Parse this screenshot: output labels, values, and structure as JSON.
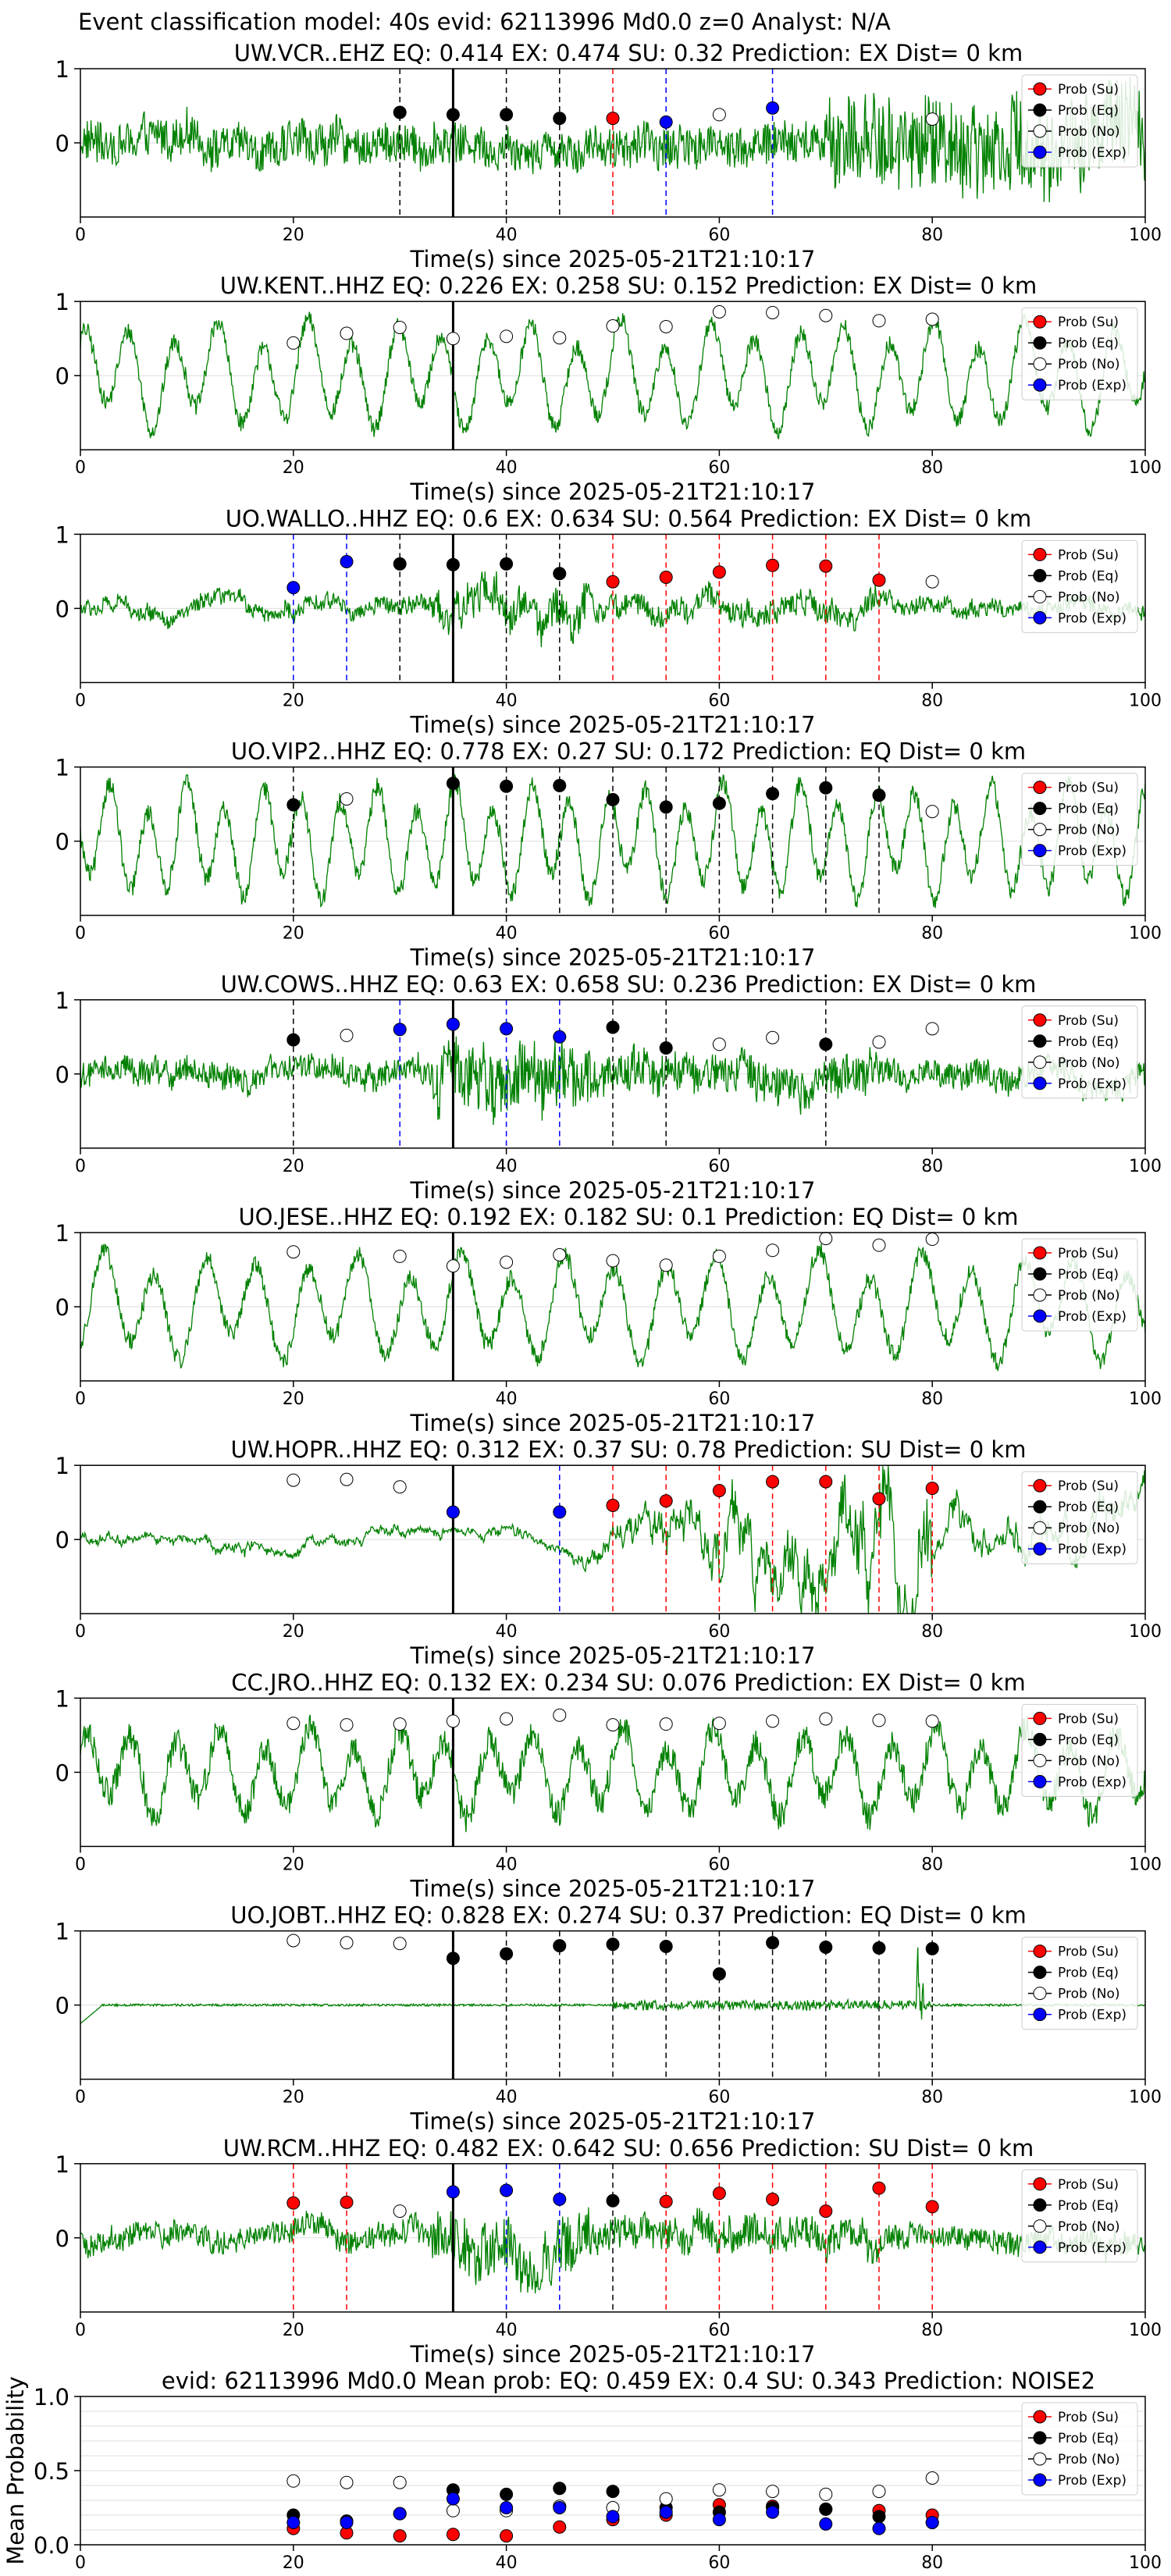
{
  "figure_title": "Event classification model: 40s evid: 62113996 Md0.0 z=0 Analyst: N/A",
  "colors": {
    "waveform": "#008000",
    "su": "#ff0000",
    "eq": "#000000",
    "no": "#ffffff",
    "exp": "#0000ff",
    "grid": "#dddddd",
    "pick": "#000000"
  },
  "legend_labels": [
    "Prob (Su)",
    "Prob (Eq)",
    "Prob (No)",
    "Prob (Exp)"
  ],
  "chart_data": [
    {
      "type": "scatter",
      "title": "UW.VCR..EHZ   EQ: 0.414  EX: 0.474  SU: 0.32   Prediction: EX    Dist= 0 km",
      "xlabel": "Time(s) since 2025-05-21T21:10:17",
      "xlim": [
        0,
        100
      ],
      "ylim": [
        -1,
        1
      ],
      "xticks": [
        0,
        20,
        40,
        60,
        80,
        100
      ],
      "yticks": [
        0,
        1
      ],
      "pick_time": 35,
      "waveform_amplitude": 0.55,
      "waveform_style": "noisy-burst-late",
      "legend_position": "top-right",
      "points": [
        {
          "x": 30,
          "y": 0.41,
          "cls": "eq"
        },
        {
          "x": 35,
          "y": 0.38,
          "cls": "eq"
        },
        {
          "x": 40,
          "y": 0.38,
          "cls": "eq"
        },
        {
          "x": 45,
          "y": 0.33,
          "cls": "eq"
        },
        {
          "x": 50,
          "y": 0.33,
          "cls": "su"
        },
        {
          "x": 55,
          "y": 0.28,
          "cls": "exp"
        },
        {
          "x": 60,
          "y": 0.38,
          "cls": "no"
        },
        {
          "x": 65,
          "y": 0.47,
          "cls": "exp"
        },
        {
          "x": 80,
          "y": 0.32,
          "cls": "no"
        }
      ]
    },
    {
      "type": "scatter",
      "title": "UW.KENT..HHZ   EQ: 0.226  EX: 0.258  SU: 0.152   Prediction: EX    Dist= 0 km",
      "xlabel": "Time(s) since 2025-05-21T21:10:17",
      "xlim": [
        0,
        100
      ],
      "ylim": [
        -1,
        1
      ],
      "xticks": [
        0,
        20,
        40,
        60,
        80,
        100
      ],
      "yticks": [
        0,
        1
      ],
      "pick_time": 35,
      "waveform_amplitude": 0.8,
      "waveform_style": "oscillating",
      "legend_position": "top-right",
      "points": [
        {
          "x": 20,
          "y": 0.44,
          "cls": "no"
        },
        {
          "x": 25,
          "y": 0.57,
          "cls": "no"
        },
        {
          "x": 30,
          "y": 0.65,
          "cls": "no"
        },
        {
          "x": 35,
          "y": 0.5,
          "cls": "no"
        },
        {
          "x": 40,
          "y": 0.53,
          "cls": "no"
        },
        {
          "x": 45,
          "y": 0.51,
          "cls": "no"
        },
        {
          "x": 50,
          "y": 0.67,
          "cls": "no"
        },
        {
          "x": 55,
          "y": 0.66,
          "cls": "no"
        },
        {
          "x": 60,
          "y": 0.86,
          "cls": "no"
        },
        {
          "x": 65,
          "y": 0.85,
          "cls": "no"
        },
        {
          "x": 70,
          "y": 0.81,
          "cls": "no"
        },
        {
          "x": 75,
          "y": 0.74,
          "cls": "no"
        },
        {
          "x": 80,
          "y": 0.76,
          "cls": "no"
        }
      ]
    },
    {
      "type": "scatter",
      "title": "UO.WALLO..HHZ   EQ: 0.6  EX: 0.634  SU: 0.564   Prediction: EX    Dist= 0 km",
      "xlabel": "Time(s) since 2025-05-21T21:10:17",
      "xlim": [
        0,
        100
      ],
      "ylim": [
        -1,
        1
      ],
      "xticks": [
        0,
        20,
        40,
        60,
        80,
        100
      ],
      "yticks": [
        0,
        1
      ],
      "pick_time": 35,
      "waveform_amplitude": 0.2,
      "waveform_style": "noisy-burst-mid",
      "legend_position": "top-right",
      "points": [
        {
          "x": 20,
          "y": 0.28,
          "cls": "exp"
        },
        {
          "x": 25,
          "y": 0.63,
          "cls": "exp"
        },
        {
          "x": 30,
          "y": 0.6,
          "cls": "eq"
        },
        {
          "x": 35,
          "y": 0.59,
          "cls": "eq"
        },
        {
          "x": 40,
          "y": 0.6,
          "cls": "eq"
        },
        {
          "x": 45,
          "y": 0.47,
          "cls": "eq"
        },
        {
          "x": 50,
          "y": 0.36,
          "cls": "su"
        },
        {
          "x": 55,
          "y": 0.42,
          "cls": "su"
        },
        {
          "x": 60,
          "y": 0.49,
          "cls": "su"
        },
        {
          "x": 65,
          "y": 0.58,
          "cls": "su"
        },
        {
          "x": 70,
          "y": 0.57,
          "cls": "su"
        },
        {
          "x": 75,
          "y": 0.38,
          "cls": "su"
        },
        {
          "x": 80,
          "y": 0.36,
          "cls": "no"
        }
      ]
    },
    {
      "type": "scatter",
      "title": "UO.VIP2..HHZ   EQ: 0.778  EX: 0.27  SU: 0.172   Prediction: EQ    Dist= 0 km",
      "xlabel": "Time(s) since 2025-05-21T21:10:17",
      "xlim": [
        0,
        100
      ],
      "ylim": [
        -1,
        1
      ],
      "xticks": [
        0,
        20,
        40,
        60,
        80,
        100
      ],
      "yticks": [
        0,
        1
      ],
      "pick_time": 35,
      "waveform_amplitude": 0.85,
      "waveform_style": "oscillating",
      "legend_position": "top-right",
      "points": [
        {
          "x": 20,
          "y": 0.49,
          "cls": "eq"
        },
        {
          "x": 25,
          "y": 0.57,
          "cls": "no"
        },
        {
          "x": 35,
          "y": 0.78,
          "cls": "eq"
        },
        {
          "x": 40,
          "y": 0.74,
          "cls": "eq"
        },
        {
          "x": 45,
          "y": 0.75,
          "cls": "eq"
        },
        {
          "x": 50,
          "y": 0.56,
          "cls": "eq"
        },
        {
          "x": 55,
          "y": 0.46,
          "cls": "eq"
        },
        {
          "x": 60,
          "y": 0.51,
          "cls": "eq"
        },
        {
          "x": 65,
          "y": 0.64,
          "cls": "eq"
        },
        {
          "x": 70,
          "y": 0.72,
          "cls": "eq"
        },
        {
          "x": 75,
          "y": 0.62,
          "cls": "eq"
        },
        {
          "x": 80,
          "y": 0.4,
          "cls": "no"
        }
      ]
    },
    {
      "type": "scatter",
      "title": "UW.COWS..HHZ   EQ: 0.63  EX: 0.658  SU: 0.236   Prediction: EX    Dist= 0 km",
      "xlabel": "Time(s) since 2025-05-21T21:10:17",
      "xlim": [
        0,
        100
      ],
      "ylim": [
        -1,
        1
      ],
      "xticks": [
        0,
        20,
        40,
        60,
        80,
        100
      ],
      "yticks": [
        0,
        1
      ],
      "pick_time": 35,
      "waveform_amplitude": 0.35,
      "waveform_style": "noisy-burst-mid",
      "legend_position": "top-right",
      "points": [
        {
          "x": 20,
          "y": 0.46,
          "cls": "eq"
        },
        {
          "x": 25,
          "y": 0.52,
          "cls": "no"
        },
        {
          "x": 30,
          "y": 0.6,
          "cls": "exp"
        },
        {
          "x": 35,
          "y": 0.67,
          "cls": "exp"
        },
        {
          "x": 40,
          "y": 0.61,
          "cls": "exp"
        },
        {
          "x": 45,
          "y": 0.5,
          "cls": "exp"
        },
        {
          "x": 50,
          "y": 0.63,
          "cls": "eq"
        },
        {
          "x": 55,
          "y": 0.35,
          "cls": "eq"
        },
        {
          "x": 60,
          "y": 0.4,
          "cls": "no"
        },
        {
          "x": 65,
          "y": 0.49,
          "cls": "no"
        },
        {
          "x": 70,
          "y": 0.4,
          "cls": "eq"
        },
        {
          "x": 75,
          "y": 0.43,
          "cls": "no"
        },
        {
          "x": 80,
          "y": 0.61,
          "cls": "no"
        }
      ]
    },
    {
      "type": "scatter",
      "title": "UO.JESE..HHZ   EQ: 0.192  EX: 0.182  SU: 0.1   Prediction: EQ    Dist= 0 km",
      "xlabel": "Time(s) since 2025-05-21T21:10:17",
      "xlim": [
        0,
        100
      ],
      "ylim": [
        -1,
        1
      ],
      "xticks": [
        0,
        20,
        40,
        60,
        80,
        100
      ],
      "yticks": [
        0,
        1
      ],
      "pick_time": 35,
      "waveform_amplitude": 0.8,
      "waveform_style": "oscillating",
      "legend_position": "top-right",
      "points": [
        {
          "x": 20,
          "y": 0.74,
          "cls": "no"
        },
        {
          "x": 30,
          "y": 0.68,
          "cls": "no"
        },
        {
          "x": 35,
          "y": 0.55,
          "cls": "no"
        },
        {
          "x": 40,
          "y": 0.6,
          "cls": "no"
        },
        {
          "x": 45,
          "y": 0.7,
          "cls": "no"
        },
        {
          "x": 50,
          "y": 0.62,
          "cls": "no"
        },
        {
          "x": 55,
          "y": 0.56,
          "cls": "no"
        },
        {
          "x": 60,
          "y": 0.68,
          "cls": "no"
        },
        {
          "x": 65,
          "y": 0.76,
          "cls": "no"
        },
        {
          "x": 70,
          "y": 0.92,
          "cls": "no"
        },
        {
          "x": 75,
          "y": 0.83,
          "cls": "no"
        },
        {
          "x": 80,
          "y": 0.91,
          "cls": "no"
        }
      ]
    },
    {
      "type": "scatter",
      "title": "UW.HOPR..HHZ   EQ: 0.312  EX: 0.37  SU: 0.78   Prediction: SU    Dist= 0 km",
      "xlabel": "Time(s) since 2025-05-21T21:10:17",
      "xlim": [
        0,
        100
      ],
      "ylim": [
        -1,
        1
      ],
      "xticks": [
        0,
        20,
        40,
        60,
        80,
        100
      ],
      "yticks": [
        0,
        1
      ],
      "pick_time": 35,
      "waveform_amplitude": 0.08,
      "waveform_style": "quiet-burst-late",
      "legend_position": "top-right",
      "points": [
        {
          "x": 20,
          "y": 0.8,
          "cls": "no"
        },
        {
          "x": 25,
          "y": 0.81,
          "cls": "no"
        },
        {
          "x": 30,
          "y": 0.71,
          "cls": "no"
        },
        {
          "x": 35,
          "y": 0.37,
          "cls": "exp"
        },
        {
          "x": 45,
          "y": 0.37,
          "cls": "exp"
        },
        {
          "x": 50,
          "y": 0.46,
          "cls": "su"
        },
        {
          "x": 55,
          "y": 0.52,
          "cls": "su"
        },
        {
          "x": 60,
          "y": 0.66,
          "cls": "su"
        },
        {
          "x": 65,
          "y": 0.78,
          "cls": "su"
        },
        {
          "x": 70,
          "y": 0.78,
          "cls": "su"
        },
        {
          "x": 75,
          "y": 0.55,
          "cls": "su"
        },
        {
          "x": 80,
          "y": 0.69,
          "cls": "su"
        }
      ]
    },
    {
      "type": "scatter",
      "title": "CC.JRO..HHZ   EQ: 0.132  EX: 0.234  SU: 0.076   Prediction: EX    Dist= 0 km",
      "xlabel": "Time(s) since 2025-05-21T21:10:17",
      "xlim": [
        0,
        100
      ],
      "ylim": [
        -1,
        1
      ],
      "xticks": [
        0,
        20,
        40,
        60,
        80,
        100
      ],
      "yticks": [
        0,
        1
      ],
      "pick_time": 35,
      "waveform_amplitude": 0.65,
      "waveform_style": "oscillating-noisy",
      "legend_position": "top-right",
      "points": [
        {
          "x": 20,
          "y": 0.66,
          "cls": "no"
        },
        {
          "x": 25,
          "y": 0.64,
          "cls": "no"
        },
        {
          "x": 30,
          "y": 0.65,
          "cls": "no"
        },
        {
          "x": 35,
          "y": 0.69,
          "cls": "no"
        },
        {
          "x": 40,
          "y": 0.72,
          "cls": "no"
        },
        {
          "x": 45,
          "y": 0.77,
          "cls": "no"
        },
        {
          "x": 50,
          "y": 0.64,
          "cls": "no"
        },
        {
          "x": 55,
          "y": 0.65,
          "cls": "no"
        },
        {
          "x": 60,
          "y": 0.66,
          "cls": "no"
        },
        {
          "x": 65,
          "y": 0.69,
          "cls": "no"
        },
        {
          "x": 70,
          "y": 0.72,
          "cls": "no"
        },
        {
          "x": 75,
          "y": 0.7,
          "cls": "no"
        },
        {
          "x": 80,
          "y": 0.69,
          "cls": "no"
        }
      ]
    },
    {
      "type": "scatter",
      "title": "UO.JOBT..HHZ   EQ: 0.828  EX: 0.274  SU: 0.37   Prediction: EQ    Dist= 0 km",
      "xlabel": "Time(s) since 2025-05-21T21:10:17",
      "xlim": [
        0,
        100
      ],
      "ylim": [
        -1,
        1
      ],
      "xticks": [
        0,
        20,
        40,
        60,
        80,
        100
      ],
      "yticks": [
        0,
        1
      ],
      "pick_time": 35,
      "waveform_amplitude": 0.02,
      "waveform_style": "flat-with-spike",
      "legend_position": "top-right",
      "points": [
        {
          "x": 20,
          "y": 0.87,
          "cls": "no"
        },
        {
          "x": 25,
          "y": 0.84,
          "cls": "no"
        },
        {
          "x": 30,
          "y": 0.83,
          "cls": "no"
        },
        {
          "x": 35,
          "y": 0.63,
          "cls": "eq"
        },
        {
          "x": 40,
          "y": 0.69,
          "cls": "eq"
        },
        {
          "x": 45,
          "y": 0.8,
          "cls": "eq"
        },
        {
          "x": 50,
          "y": 0.82,
          "cls": "eq"
        },
        {
          "x": 55,
          "y": 0.79,
          "cls": "eq"
        },
        {
          "x": 60,
          "y": 0.42,
          "cls": "eq"
        },
        {
          "x": 65,
          "y": 0.84,
          "cls": "eq"
        },
        {
          "x": 70,
          "y": 0.78,
          "cls": "eq"
        },
        {
          "x": 75,
          "y": 0.77,
          "cls": "eq"
        },
        {
          "x": 80,
          "y": 0.76,
          "cls": "eq"
        }
      ]
    },
    {
      "type": "scatter",
      "title": "UW.RCM..HHZ   EQ: 0.482  EX: 0.642  SU: 0.656   Prediction: SU    Dist= 0 km",
      "xlabel": "Time(s) since 2025-05-21T21:10:17",
      "xlim": [
        0,
        100
      ],
      "ylim": [
        -1,
        1
      ],
      "xticks": [
        0,
        20,
        40,
        60,
        80,
        100
      ],
      "yticks": [
        0,
        1
      ],
      "pick_time": 35,
      "waveform_amplitude": 0.3,
      "waveform_style": "noisy-burst-mid",
      "legend_position": "top-right",
      "points": [
        {
          "x": 20,
          "y": 0.47,
          "cls": "su"
        },
        {
          "x": 25,
          "y": 0.48,
          "cls": "su"
        },
        {
          "x": 30,
          "y": 0.36,
          "cls": "no"
        },
        {
          "x": 35,
          "y": 0.62,
          "cls": "exp"
        },
        {
          "x": 40,
          "y": 0.64,
          "cls": "exp"
        },
        {
          "x": 45,
          "y": 0.52,
          "cls": "exp"
        },
        {
          "x": 50,
          "y": 0.5,
          "cls": "eq"
        },
        {
          "x": 55,
          "y": 0.49,
          "cls": "su"
        },
        {
          "x": 60,
          "y": 0.6,
          "cls": "su"
        },
        {
          "x": 65,
          "y": 0.52,
          "cls": "su"
        },
        {
          "x": 70,
          "y": 0.36,
          "cls": "su"
        },
        {
          "x": 75,
          "y": 0.67,
          "cls": "su"
        },
        {
          "x": 80,
          "y": 0.42,
          "cls": "su"
        }
      ]
    },
    {
      "type": "scatter",
      "title": "evid: 62113996  Md0.0   Mean prob:   EQ: 0.459  EX: 0.4  SU: 0.343   Prediction: NOISE2",
      "xlabel": "",
      "ylabel": "Mean Probability",
      "xlim": [
        0,
        100
      ],
      "ylim": [
        0,
        1
      ],
      "xticks": [
        0,
        20,
        40,
        60,
        80,
        100
      ],
      "yticks": [
        0.0,
        0.5,
        1.0
      ],
      "legend_position": "top-right",
      "series": [
        {
          "name": "Prob (Su)",
          "cls": "su",
          "x": [
            20,
            25,
            30,
            35,
            40,
            45,
            50,
            55,
            60,
            65,
            70,
            75,
            80
          ],
          "y": [
            0.11,
            0.08,
            0.06,
            0.07,
            0.06,
            0.12,
            0.17,
            0.2,
            0.27,
            0.26,
            0.24,
            0.23,
            0.2
          ]
        },
        {
          "name": "Prob (Eq)",
          "cls": "eq",
          "x": [
            20,
            25,
            30,
            35,
            40,
            45,
            50,
            55,
            60,
            65,
            70,
            75,
            80
          ],
          "y": [
            0.2,
            0.16,
            0.21,
            0.37,
            0.34,
            0.38,
            0.36,
            0.25,
            0.22,
            0.25,
            0.24,
            0.19,
            0.15
          ]
        },
        {
          "name": "Prob (No)",
          "cls": "no",
          "x": [
            20,
            25,
            30,
            35,
            40,
            45,
            50,
            55,
            60,
            65,
            70,
            75,
            80
          ],
          "y": [
            0.43,
            0.42,
            0.42,
            0.23,
            0.23,
            0.26,
            0.25,
            0.31,
            0.37,
            0.36,
            0.34,
            0.36,
            0.45
          ]
        },
        {
          "name": "Prob (Exp)",
          "cls": "exp",
          "x": [
            20,
            25,
            30,
            35,
            40,
            45,
            50,
            55,
            60,
            65,
            70,
            75,
            80
          ],
          "y": [
            0.15,
            0.15,
            0.21,
            0.31,
            0.25,
            0.25,
            0.19,
            0.22,
            0.17,
            0.22,
            0.14,
            0.11,
            0.15
          ]
        }
      ]
    }
  ]
}
